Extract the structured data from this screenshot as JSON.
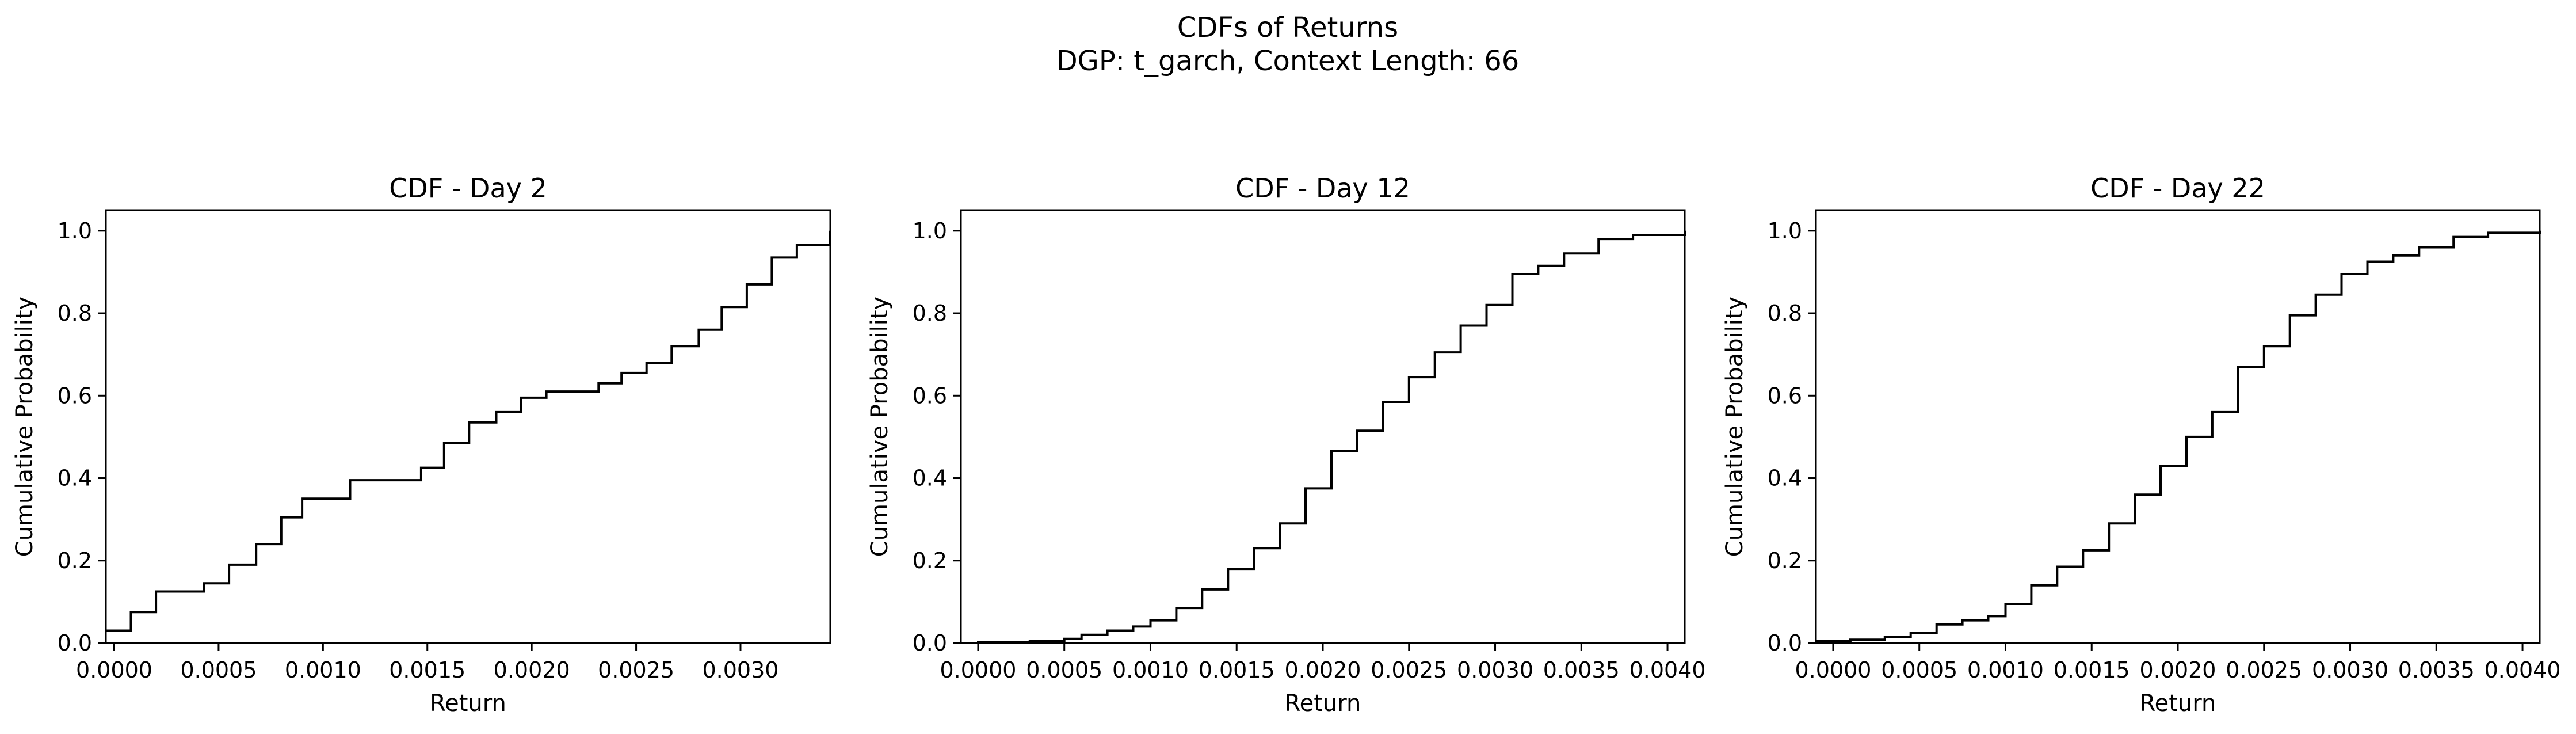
{
  "figure": {
    "suptitle_line1": "CDFs of Returns",
    "suptitle_line2": "DGP: t_garch, Context Length: 66"
  },
  "chart_data": [
    {
      "type": "line",
      "step": true,
      "title": "CDF - Day 2",
      "xlabel": "Return",
      "ylabel": "Cumulative Probability",
      "xlim": [
        -4e-05,
        0.00343
      ],
      "ylim": [
        0.0,
        1.05
      ],
      "xticks": [
        0.0,
        0.0005,
        0.001,
        0.0015,
        0.002,
        0.0025,
        0.003
      ],
      "xtick_labels": [
        "0.0000",
        "0.0005",
        "0.0010",
        "0.0015",
        "0.0020",
        "0.0025",
        "0.0030"
      ],
      "yticks": [
        0.0,
        0.2,
        0.4,
        0.6,
        0.8,
        1.0
      ],
      "ytick_labels": [
        "0.0",
        "0.2",
        "0.4",
        "0.6",
        "0.8",
        "1.0"
      ],
      "color": "#000000",
      "grid": false,
      "series": [
        {
          "x": [
            -4e-05,
            8e-05,
            0.0002,
            0.00043,
            0.00055,
            0.00068,
            0.0008,
            0.0009,
            0.00113,
            0.00147,
            0.00158,
            0.0017,
            0.00183,
            0.00195,
            0.00207,
            0.00232,
            0.00243,
            0.00255,
            0.00267,
            0.0028,
            0.00291,
            0.00303,
            0.00315,
            0.00327,
            0.00343
          ],
          "y": [
            0.03,
            0.075,
            0.125,
            0.145,
            0.19,
            0.24,
            0.305,
            0.35,
            0.395,
            0.425,
            0.485,
            0.535,
            0.56,
            0.595,
            0.61,
            0.63,
            0.655,
            0.68,
            0.72,
            0.76,
            0.815,
            0.87,
            0.935,
            0.965,
            1.0
          ]
        }
      ]
    },
    {
      "type": "line",
      "step": true,
      "title": "CDF - Day 12",
      "xlabel": "Return",
      "ylabel": "Cumulative Probability",
      "xlim": [
        -0.0001,
        0.0041
      ],
      "ylim": [
        0.0,
        1.05
      ],
      "xticks": [
        0.0,
        0.0005,
        0.001,
        0.0015,
        0.002,
        0.0025,
        0.003,
        0.0035,
        0.004
      ],
      "xtick_labels": [
        "0.0000",
        "0.0005",
        "0.0010",
        "0.0015",
        "0.0020",
        "0.0025",
        "0.0030",
        "0.0035",
        "0.0040"
      ],
      "yticks": [
        0.0,
        0.2,
        0.4,
        0.6,
        0.8,
        1.0
      ],
      "ytick_labels": [
        "0.0",
        "0.2",
        "0.4",
        "0.6",
        "0.8",
        "1.0"
      ],
      "color": "#000000",
      "grid": false,
      "series": [
        {
          "x": [
            -0.0001,
            0.0,
            0.0003,
            0.0005,
            0.0006,
            0.00075,
            0.0009,
            0.001,
            0.00115,
            0.0013,
            0.00145,
            0.0016,
            0.00175,
            0.0019,
            0.00205,
            0.0022,
            0.00235,
            0.0025,
            0.00265,
            0.0028,
            0.00295,
            0.0031,
            0.00325,
            0.0034,
            0.0036,
            0.0038,
            0.0041
          ],
          "y": [
            0.0,
            0.002,
            0.005,
            0.01,
            0.02,
            0.03,
            0.04,
            0.055,
            0.085,
            0.13,
            0.18,
            0.23,
            0.29,
            0.375,
            0.465,
            0.515,
            0.585,
            0.645,
            0.705,
            0.77,
            0.82,
            0.895,
            0.915,
            0.945,
            0.98,
            0.99,
            1.0
          ]
        }
      ]
    },
    {
      "type": "line",
      "step": true,
      "title": "CDF - Day 22",
      "xlabel": "Return",
      "ylabel": "Cumulative Probability",
      "xlim": [
        -0.0001,
        0.0041
      ],
      "ylim": [
        0.0,
        1.05
      ],
      "xticks": [
        0.0,
        0.0005,
        0.001,
        0.0015,
        0.002,
        0.0025,
        0.003,
        0.0035,
        0.004
      ],
      "xtick_labels": [
        "0.0000",
        "0.0005",
        "0.0010",
        "0.0015",
        "0.0020",
        "0.0025",
        "0.0030",
        "0.0035",
        "0.0040"
      ],
      "yticks": [
        0.0,
        0.2,
        0.4,
        0.6,
        0.8,
        1.0
      ],
      "ytick_labels": [
        "0.0",
        "0.2",
        "0.4",
        "0.6",
        "0.8",
        "1.0"
      ],
      "color": "#000000",
      "grid": false,
      "series": [
        {
          "x": [
            -0.0001,
            0.0001,
            0.0003,
            0.00045,
            0.0006,
            0.00075,
            0.0009,
            0.001,
            0.00115,
            0.0013,
            0.00145,
            0.0016,
            0.00175,
            0.0019,
            0.00205,
            0.0022,
            0.00235,
            0.0025,
            0.00265,
            0.0028,
            0.00295,
            0.0031,
            0.00325,
            0.0034,
            0.0036,
            0.0038,
            0.0041
          ],
          "y": [
            0.005,
            0.008,
            0.015,
            0.025,
            0.045,
            0.055,
            0.065,
            0.095,
            0.14,
            0.185,
            0.225,
            0.29,
            0.36,
            0.43,
            0.5,
            0.56,
            0.67,
            0.72,
            0.795,
            0.845,
            0.895,
            0.925,
            0.94,
            0.96,
            0.985,
            0.995,
            1.0
          ]
        }
      ]
    }
  ]
}
